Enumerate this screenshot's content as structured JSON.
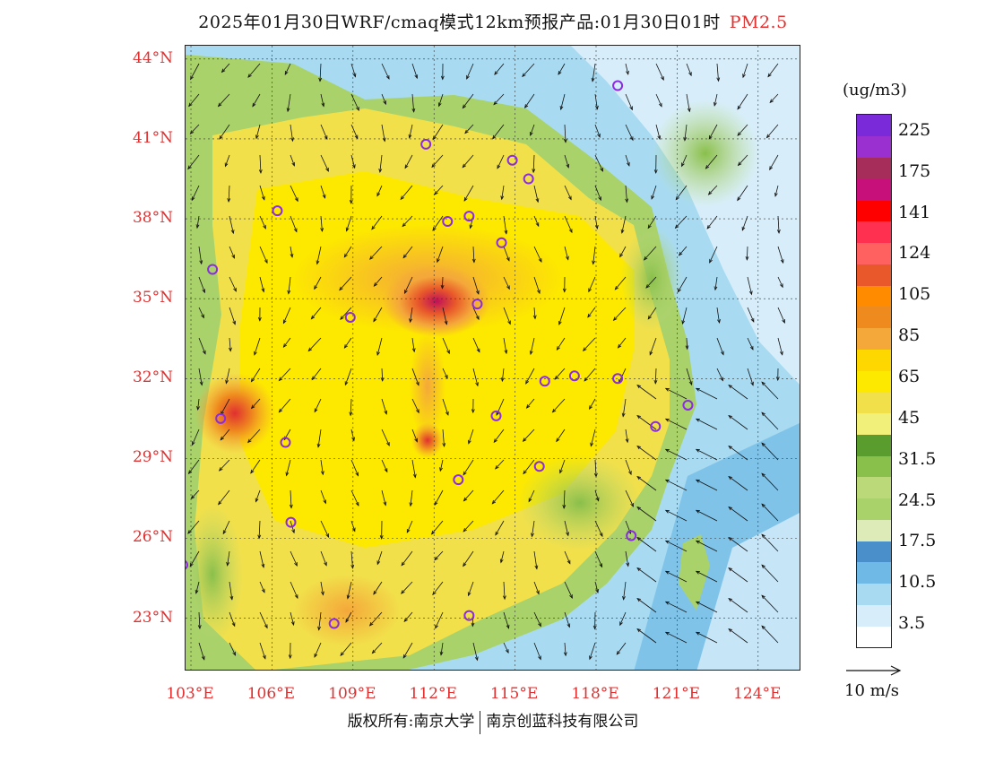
{
  "title": {
    "text": "2025年01月30日WRF/cmaq模式12km预报产品:01月30日01时",
    "variable": "PM2.5"
  },
  "map": {
    "lat_labels": [
      "44°N",
      "41°N",
      "38°N",
      "35°N",
      "32°N",
      "29°N",
      "26°N",
      "23°N"
    ],
    "lon_labels": [
      "103°E",
      "106°E",
      "109°E",
      "112°E",
      "115°E",
      "118°E",
      "121°E",
      "124°E"
    ],
    "lat_values": [
      44,
      41,
      38,
      35,
      32,
      29,
      26,
      23
    ],
    "lon_values": [
      103,
      106,
      109,
      112,
      115,
      118,
      121,
      124
    ],
    "extent": {
      "lon": [
        102.8,
        125.6
      ],
      "lat": [
        21.0,
        44.5
      ]
    },
    "colors": {
      "land_pollution": "#f6e63a",
      "high": "#e05a30",
      "sea": "#8ccbee",
      "frame": "#222222",
      "station_marker": "#8a2be2"
    }
  },
  "colorbar": {
    "unit": "(ug/m3)",
    "colors": [
      "#ffffff",
      "#d7eefa",
      "#a8dbf2",
      "#6fb9e6",
      "#4a8fc9",
      "#dcebb8",
      "#a9d26a",
      "#bcd97a",
      "#89bf4b",
      "#5a9d2e",
      "#f0f07a",
      "#f2e04a",
      "#fde800",
      "#ffd700",
      "#f4a83a",
      "#ef8a1e",
      "#ff8c00",
      "#e8582a",
      "#ff6060",
      "#ff3050",
      "#ff0000",
      "#c8107a",
      "#a62c5a",
      "#9b30d0",
      "#7a2ad8"
    ],
    "labels": [
      "3.5",
      "10.5",
      "17.5",
      "24.5",
      "31.5",
      "45",
      "65",
      "85",
      "105",
      "124",
      "141",
      "175",
      "225"
    ]
  },
  "wind_reference": {
    "label": "10 m/s"
  },
  "footer": {
    "left": "版权所有:南京大学",
    "right": "南京创蓝科技有限公司"
  }
}
